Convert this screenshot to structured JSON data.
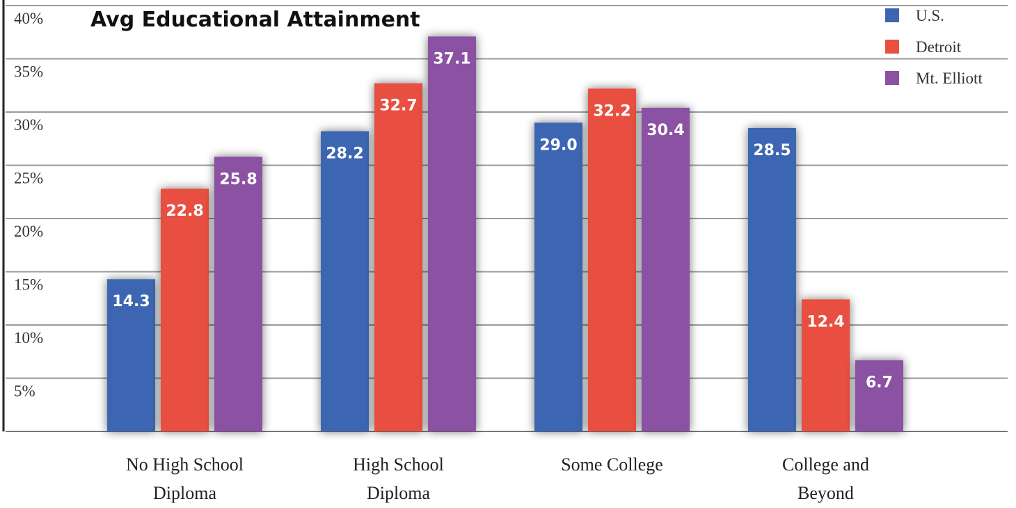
{
  "chart_data": {
    "type": "bar",
    "title": "Avg Educational Attainment",
    "categories": [
      [
        "No High School",
        "Diploma"
      ],
      [
        "High School",
        "Diploma"
      ],
      [
        "Some College"
      ],
      [
        "College and",
        "Beyond"
      ]
    ],
    "series": [
      {
        "name": "U.S.",
        "color": "#3D66B2",
        "values": [
          14.3,
          28.2,
          29.0,
          28.5
        ],
        "labels": [
          "14.3",
          "28.2",
          "29.0",
          "28.5"
        ]
      },
      {
        "name": "Detroit",
        "color": "#E8503F",
        "values": [
          22.8,
          32.7,
          32.2,
          12.4
        ],
        "labels": [
          "22.8",
          "32.7",
          "32.2",
          "12.4"
        ]
      },
      {
        "name": "Mt. Elliott",
        "color": "#8B51A3",
        "values": [
          25.8,
          37.1,
          30.4,
          6.7
        ],
        "labels": [
          "25.8",
          "37.1",
          "30.4",
          "6.7"
        ]
      }
    ],
    "yticks": [
      5,
      10,
      15,
      20,
      25,
      30,
      35,
      40
    ],
    "ytick_labels": [
      "5%",
      "10%",
      "15%",
      "20%",
      "25%",
      "30%",
      "35%",
      "40%"
    ],
    "ylim": [
      0,
      40
    ],
    "grid": true,
    "legend_position": "top-right"
  }
}
